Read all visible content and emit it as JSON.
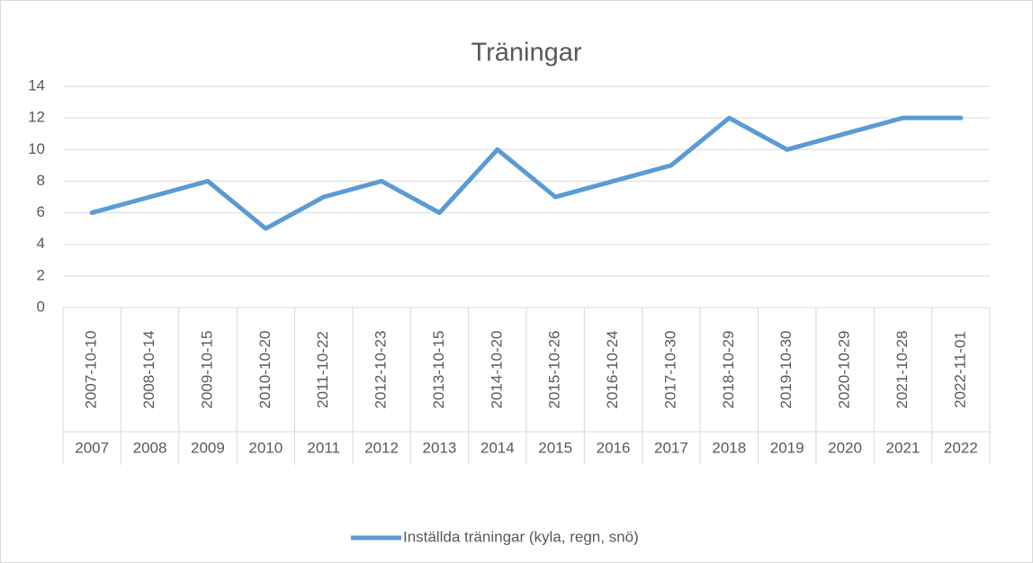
{
  "chart_data": {
    "type": "line",
    "title": "Träningar",
    "categories": [
      "2007-10-10",
      "2008-10-14",
      "2009-10-15",
      "2010-10-20",
      "2011-10-22",
      "2012-10-23",
      "2013-10-15",
      "2014-10-20",
      "2015-10-26",
      "2016-10-24",
      "2017-10-30",
      "2018-10-29",
      "2019-10-30",
      "2020-10-29",
      "2021-10-28",
      "2022-11-01"
    ],
    "category_groups": [
      "2007",
      "2008",
      "2009",
      "2010",
      "2011",
      "2012",
      "2013",
      "2014",
      "2015",
      "2016",
      "2017",
      "2018",
      "2019",
      "2020",
      "2021",
      "2022"
    ],
    "series": [
      {
        "name": "Inställda träningar (kyla, regn, snö)",
        "color": "#5b9bd5",
        "values": [
          6,
          7,
          8,
          5,
          7,
          8,
          6,
          10,
          7,
          8,
          9,
          12,
          10,
          11,
          12,
          12
        ]
      }
    ],
    "ylim": [
      0,
      14
    ],
    "yticks": [
      0,
      2,
      4,
      6,
      8,
      10,
      12,
      14
    ],
    "grid": true,
    "legend": "bottom"
  }
}
